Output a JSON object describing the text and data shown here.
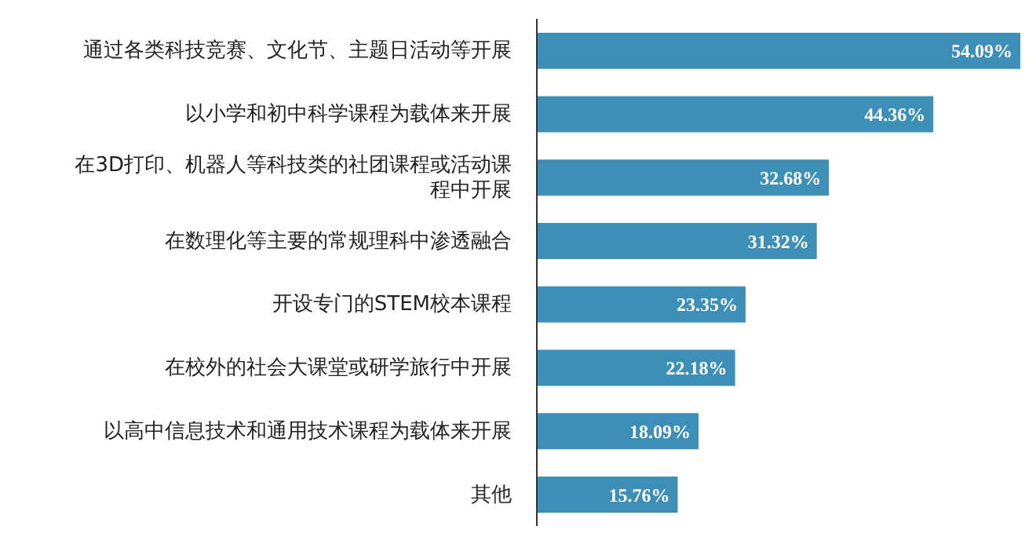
{
  "chart_data": {
    "type": "bar",
    "orientation": "horizontal",
    "categories": [
      "通过各类科技竞赛、文化节、主题日活动等开展",
      "以小学和初中科学课程为载体来开展",
      "在3D打印、机器人等科技类的社团课程或活动课程中开展",
      "在数理化等主要的常规理科中渗透融合",
      "开设专门的STEM校本课程",
      "在校外的社会大课堂或研学旅行中开展",
      "以高中信息技术和通用技术课程为载体来开展",
      "其他"
    ],
    "values": [
      54.09,
      44.36,
      32.68,
      31.32,
      23.35,
      22.18,
      18.09,
      15.76
    ],
    "value_labels": [
      "54.09%",
      "44.36%",
      "32.68%",
      "31.32%",
      "23.35%",
      "22.18%",
      "18.09%",
      "15.76%"
    ],
    "color": "#3d8fb8",
    "grid": false,
    "legend": false
  }
}
